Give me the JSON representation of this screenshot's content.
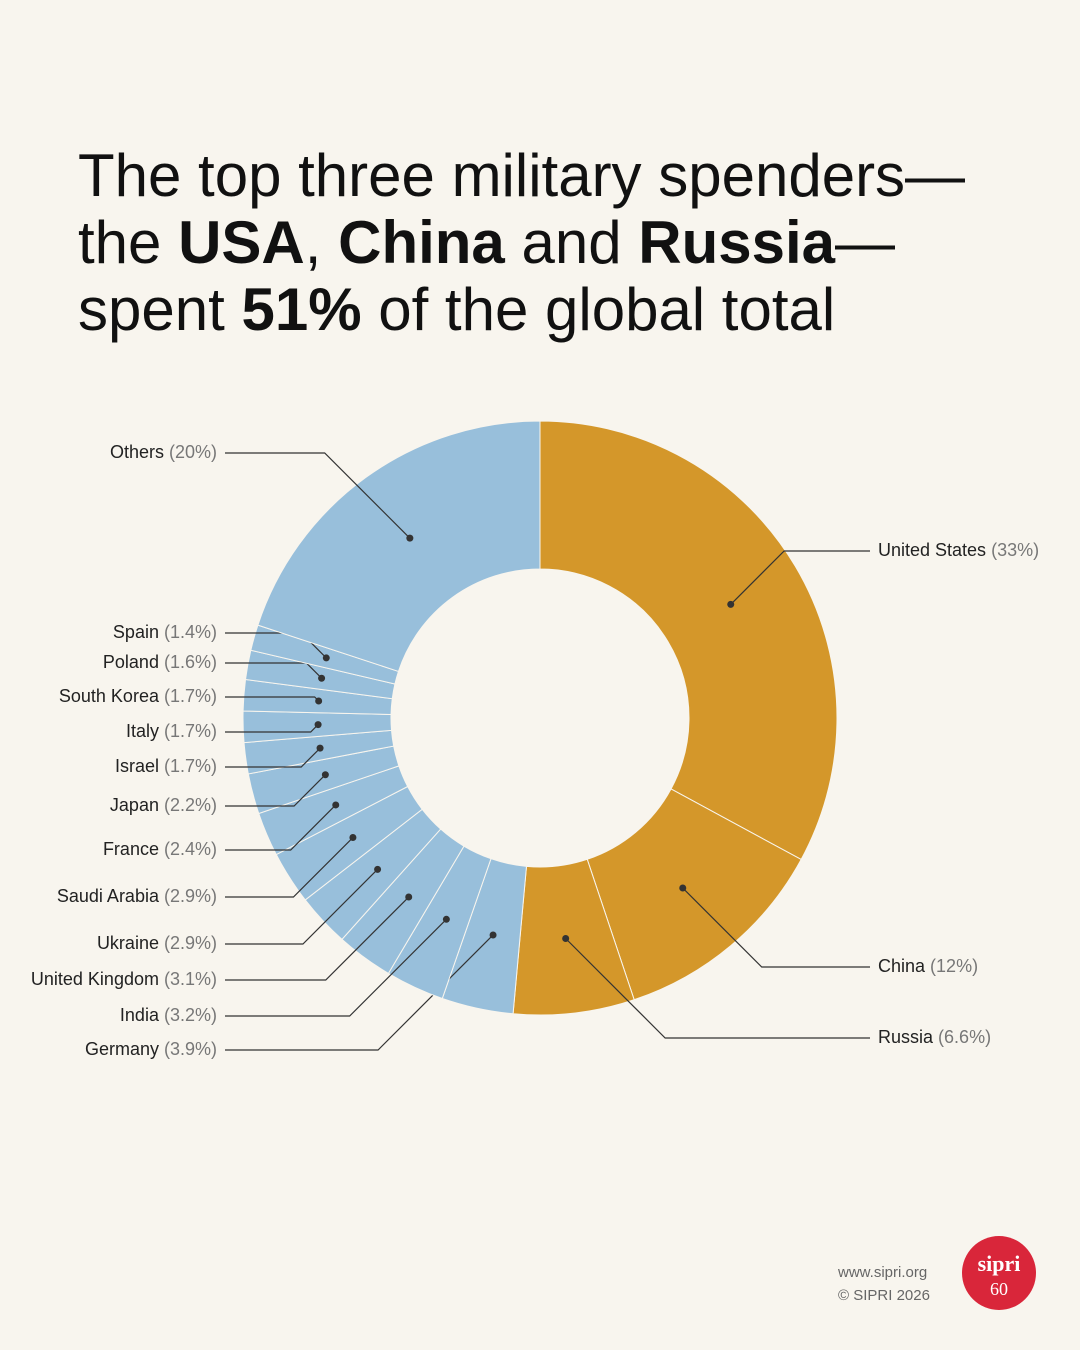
{
  "title_lines": [
    [
      {
        "text": "The top three military spenders—",
        "bold": false
      }
    ],
    [
      {
        "text": "the ",
        "bold": false
      },
      {
        "text": "USA",
        "bold": true
      },
      {
        "text": ", ",
        "bold": false
      },
      {
        "text": "China",
        "bold": true
      },
      {
        "text": " and ",
        "bold": false
      },
      {
        "text": "Russia",
        "bold": true
      },
      {
        "text": "—",
        "bold": false
      }
    ],
    [
      {
        "text": "spent ",
        "bold": false
      },
      {
        "text": "51%",
        "bold": true
      },
      {
        "text": " of the global total",
        "bold": false
      }
    ]
  ],
  "chart_data": {
    "type": "donut",
    "categories": [
      "United States",
      "China",
      "Russia",
      "Germany",
      "India",
      "United Kingdom",
      "Ukraine",
      "Saudi Arabia",
      "France",
      "Japan",
      "Israel",
      "Italy",
      "South Korea",
      "Poland",
      "Spain",
      "Others"
    ],
    "values": [
      33,
      12,
      6.6,
      3.9,
      3.2,
      3.1,
      2.9,
      2.9,
      2.4,
      2.2,
      1.7,
      1.7,
      1.7,
      1.6,
      1.4,
      20
    ],
    "value_labels": [
      "(33%)",
      "(12%)",
      "(6.6%)",
      "(3.9%)",
      "(3.2%)",
      "(3.1%)",
      "(2.9%)",
      "(2.9%)",
      "(2.4%)",
      "(2.2%)",
      "(1.7%)",
      "(1.7%)",
      "(1.7%)",
      "(1.6%)",
      "(1.4%)",
      "(20%)"
    ],
    "colors": [
      "#d4972a",
      "#d4972a",
      "#d4972a",
      "#98bfdb",
      "#98bfdb",
      "#98bfdb",
      "#98bfdb",
      "#98bfdb",
      "#98bfdb",
      "#98bfdb",
      "#98bfdb",
      "#98bfdb",
      "#98bfdb",
      "#98bfdb",
      "#98bfdb",
      "#98bfdb"
    ]
  },
  "footer": {
    "url": "www.sipri.org",
    "copyright": "© SIPRI 2026",
    "logo": "sipri",
    "logo_years": "60"
  }
}
